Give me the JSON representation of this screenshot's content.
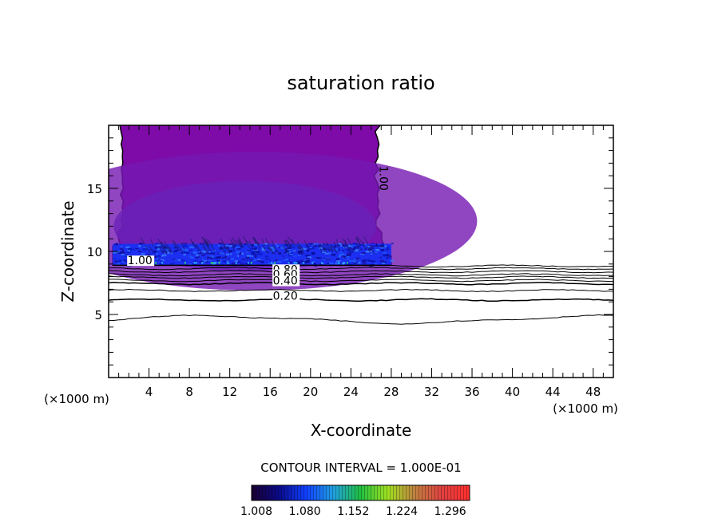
{
  "chart_data": {
    "type": "contour",
    "title": "saturation ratio",
    "xlabel": "X-coordinate",
    "ylabel": "Z-coordinate",
    "x_unit_left": "(×1000 m)",
    "x_unit_right": "(×1000 m)",
    "xlim": [
      0,
      50
    ],
    "ylim": [
      0,
      20
    ],
    "x_ticks": [
      4,
      8,
      12,
      16,
      20,
      24,
      28,
      32,
      36,
      40,
      44,
      48
    ],
    "y_ticks": [
      5,
      10,
      15
    ],
    "contour_interval_label": "CONTOUR INTERVAL = 1.000E-01",
    "contour_levels": [
      0.1,
      0.2,
      0.3,
      0.4,
      0.5,
      0.6,
      0.7,
      0.8,
      0.9,
      1.0
    ],
    "contour_labels": [
      {
        "text": "1.00",
        "x": 3.1,
        "y": 9.1
      },
      {
        "text": "1.00",
        "x": 27.0,
        "y": 15.8
      },
      {
        "text": "0.80",
        "x": 17.5,
        "y": 8.4
      },
      {
        "text": "0.60",
        "x": 17.5,
        "y": 8.0
      },
      {
        "text": "0.40",
        "x": 17.5,
        "y": 7.5
      },
      {
        "text": "0.20",
        "x": 17.5,
        "y": 6.3
      }
    ],
    "cloud_region": {
      "x_range": [
        1.3,
        28.0
      ],
      "z_range": [
        8.9,
        20.0
      ],
      "dominant_value": 1.05
    },
    "dense_layer": {
      "x_range": [
        0.4,
        28.0
      ],
      "z_range": [
        8.9,
        10.6
      ],
      "min_value": 1.008,
      "max_value": 1.2
    },
    "colorbar": {
      "ticks": [
        "1.008",
        "1.080",
        "1.152",
        "1.224",
        "1.296"
      ],
      "range": [
        1.008,
        1.332
      ],
      "colors": [
        "#1a0030",
        "#0a0a8a",
        "#1040ff",
        "#20a0e0",
        "#20c040",
        "#a0e020",
        "#c08040",
        "#e04040",
        "#ff3030"
      ]
    },
    "colors": {
      "purple_fill": "#7e0aa8",
      "purple_mid": "#7418b2",
      "purple_dark": "#6a22b8",
      "blue_layer": "#1c2ef0",
      "contour_line": "#000000"
    }
  }
}
